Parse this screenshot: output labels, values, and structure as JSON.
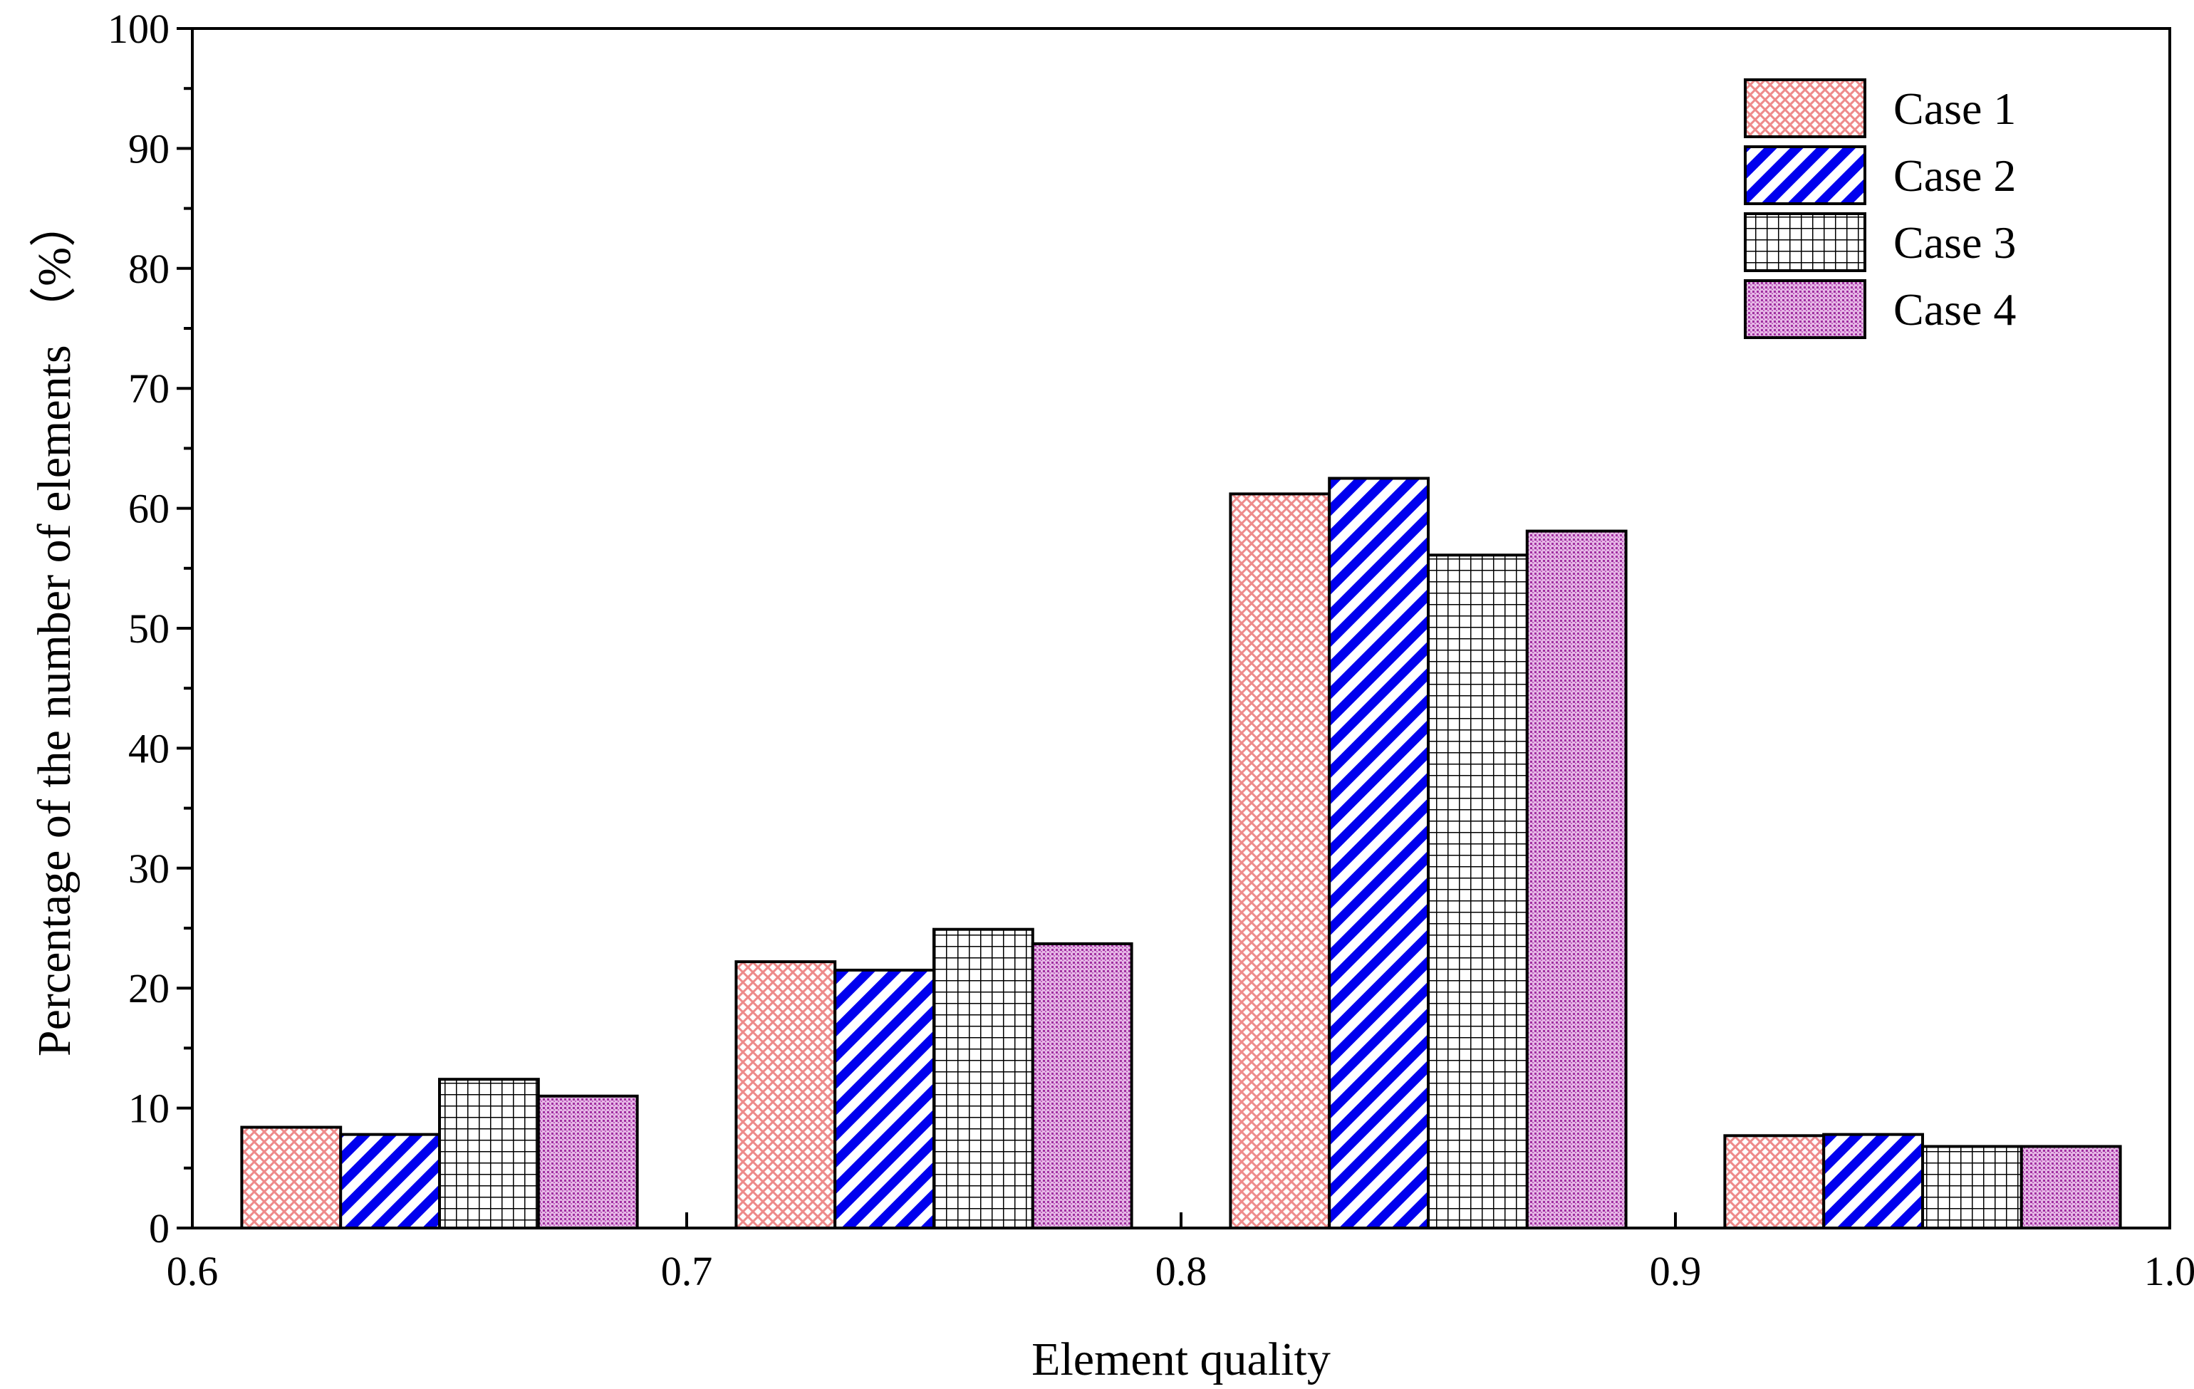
{
  "chart_data": {
    "type": "bar",
    "title": "",
    "xlabel": "Element quality",
    "ylabel": "Percentage of the number of elements （%）",
    "xlim": [
      0.6,
      1.0
    ],
    "ylim": [
      0,
      100
    ],
    "x": [
      0.65,
      0.75,
      0.85,
      0.95
    ],
    "x_ticks": [
      "0.6",
      "0.7",
      "0.8",
      "0.9",
      "1.0"
    ],
    "y_ticks": [
      "0",
      "10",
      "20",
      "30",
      "40",
      "50",
      "60",
      "70",
      "80",
      "90",
      "100"
    ],
    "bin_width": 0.08,
    "series": [
      {
        "name": "Case 1",
        "values": [
          8.4,
          22.2,
          61.2,
          7.7
        ],
        "pattern": "pink-crosshatch",
        "color": "#f08080"
      },
      {
        "name": "Case 2",
        "values": [
          7.8,
          21.5,
          62.5,
          7.8
        ],
        "pattern": "blue-diagonal",
        "color": "#0000ff"
      },
      {
        "name": "Case 3",
        "values": [
          12.4,
          24.9,
          56.1,
          6.8
        ],
        "pattern": "black-grid",
        "color": "#000000"
      },
      {
        "name": "Case 4",
        "values": [
          11.0,
          23.7,
          58.1,
          6.8
        ],
        "pattern": "purple-dotted",
        "color": "#b040b0"
      }
    ],
    "legend": {
      "position": "top-right"
    },
    "grid": false
  }
}
